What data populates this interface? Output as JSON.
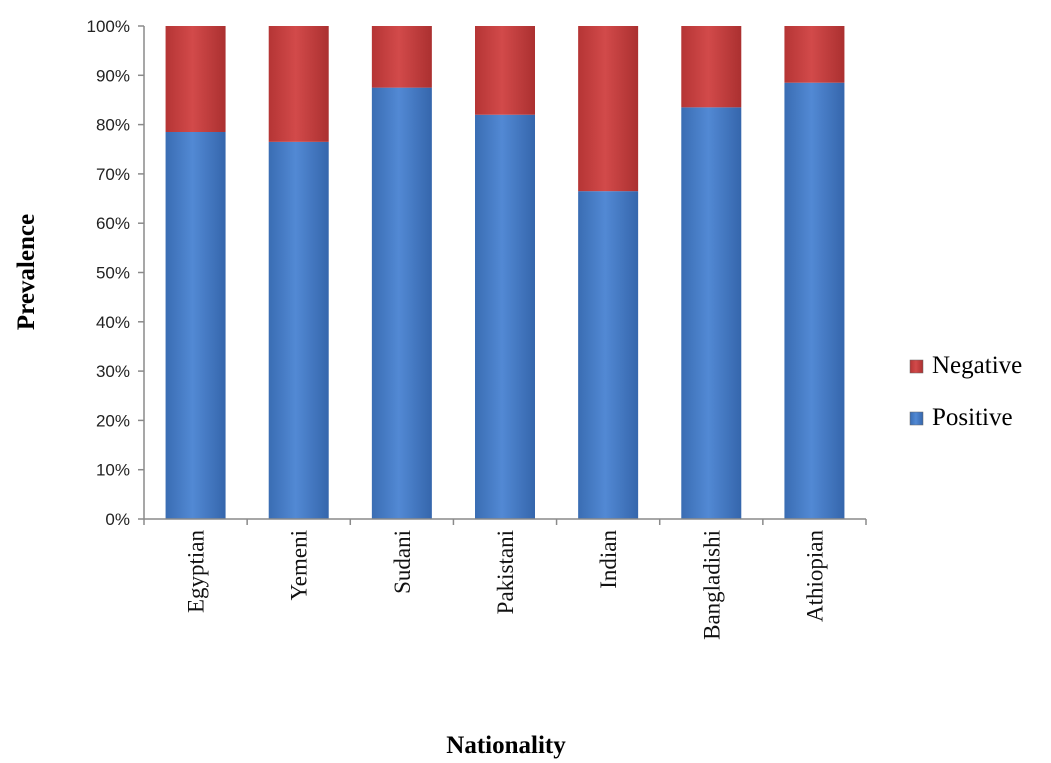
{
  "chart_data": {
    "type": "bar",
    "stacked": true,
    "percent_stacked": true,
    "categories": [
      "Egyptian",
      "Yemeni",
      "Sudani",
      "Pakistani",
      "Indian",
      "Bangladishi",
      "Athiopian"
    ],
    "series": [
      {
        "name": "Positive",
        "values": [
          78.5,
          76.5,
          87.5,
          82,
          66.5,
          83.5,
          88.5
        ],
        "color": "#4a7ec8"
      },
      {
        "name": "Negative",
        "values": [
          21.5,
          23.5,
          12.5,
          18,
          33.5,
          16.5,
          11.5
        ],
        "color": "#c94141"
      }
    ],
    "y_ticks": [
      "0%",
      "10%",
      "20%",
      "30%",
      "40%",
      "50%",
      "60%",
      "70%",
      "80%",
      "90%",
      "100%"
    ],
    "ylim": [
      0,
      100
    ],
    "xlabel": "Nationality",
    "ylabel": "Prevalence",
    "title": "",
    "grid": false,
    "legend_position": "right",
    "legend_order": [
      "Negative",
      "Positive"
    ]
  }
}
